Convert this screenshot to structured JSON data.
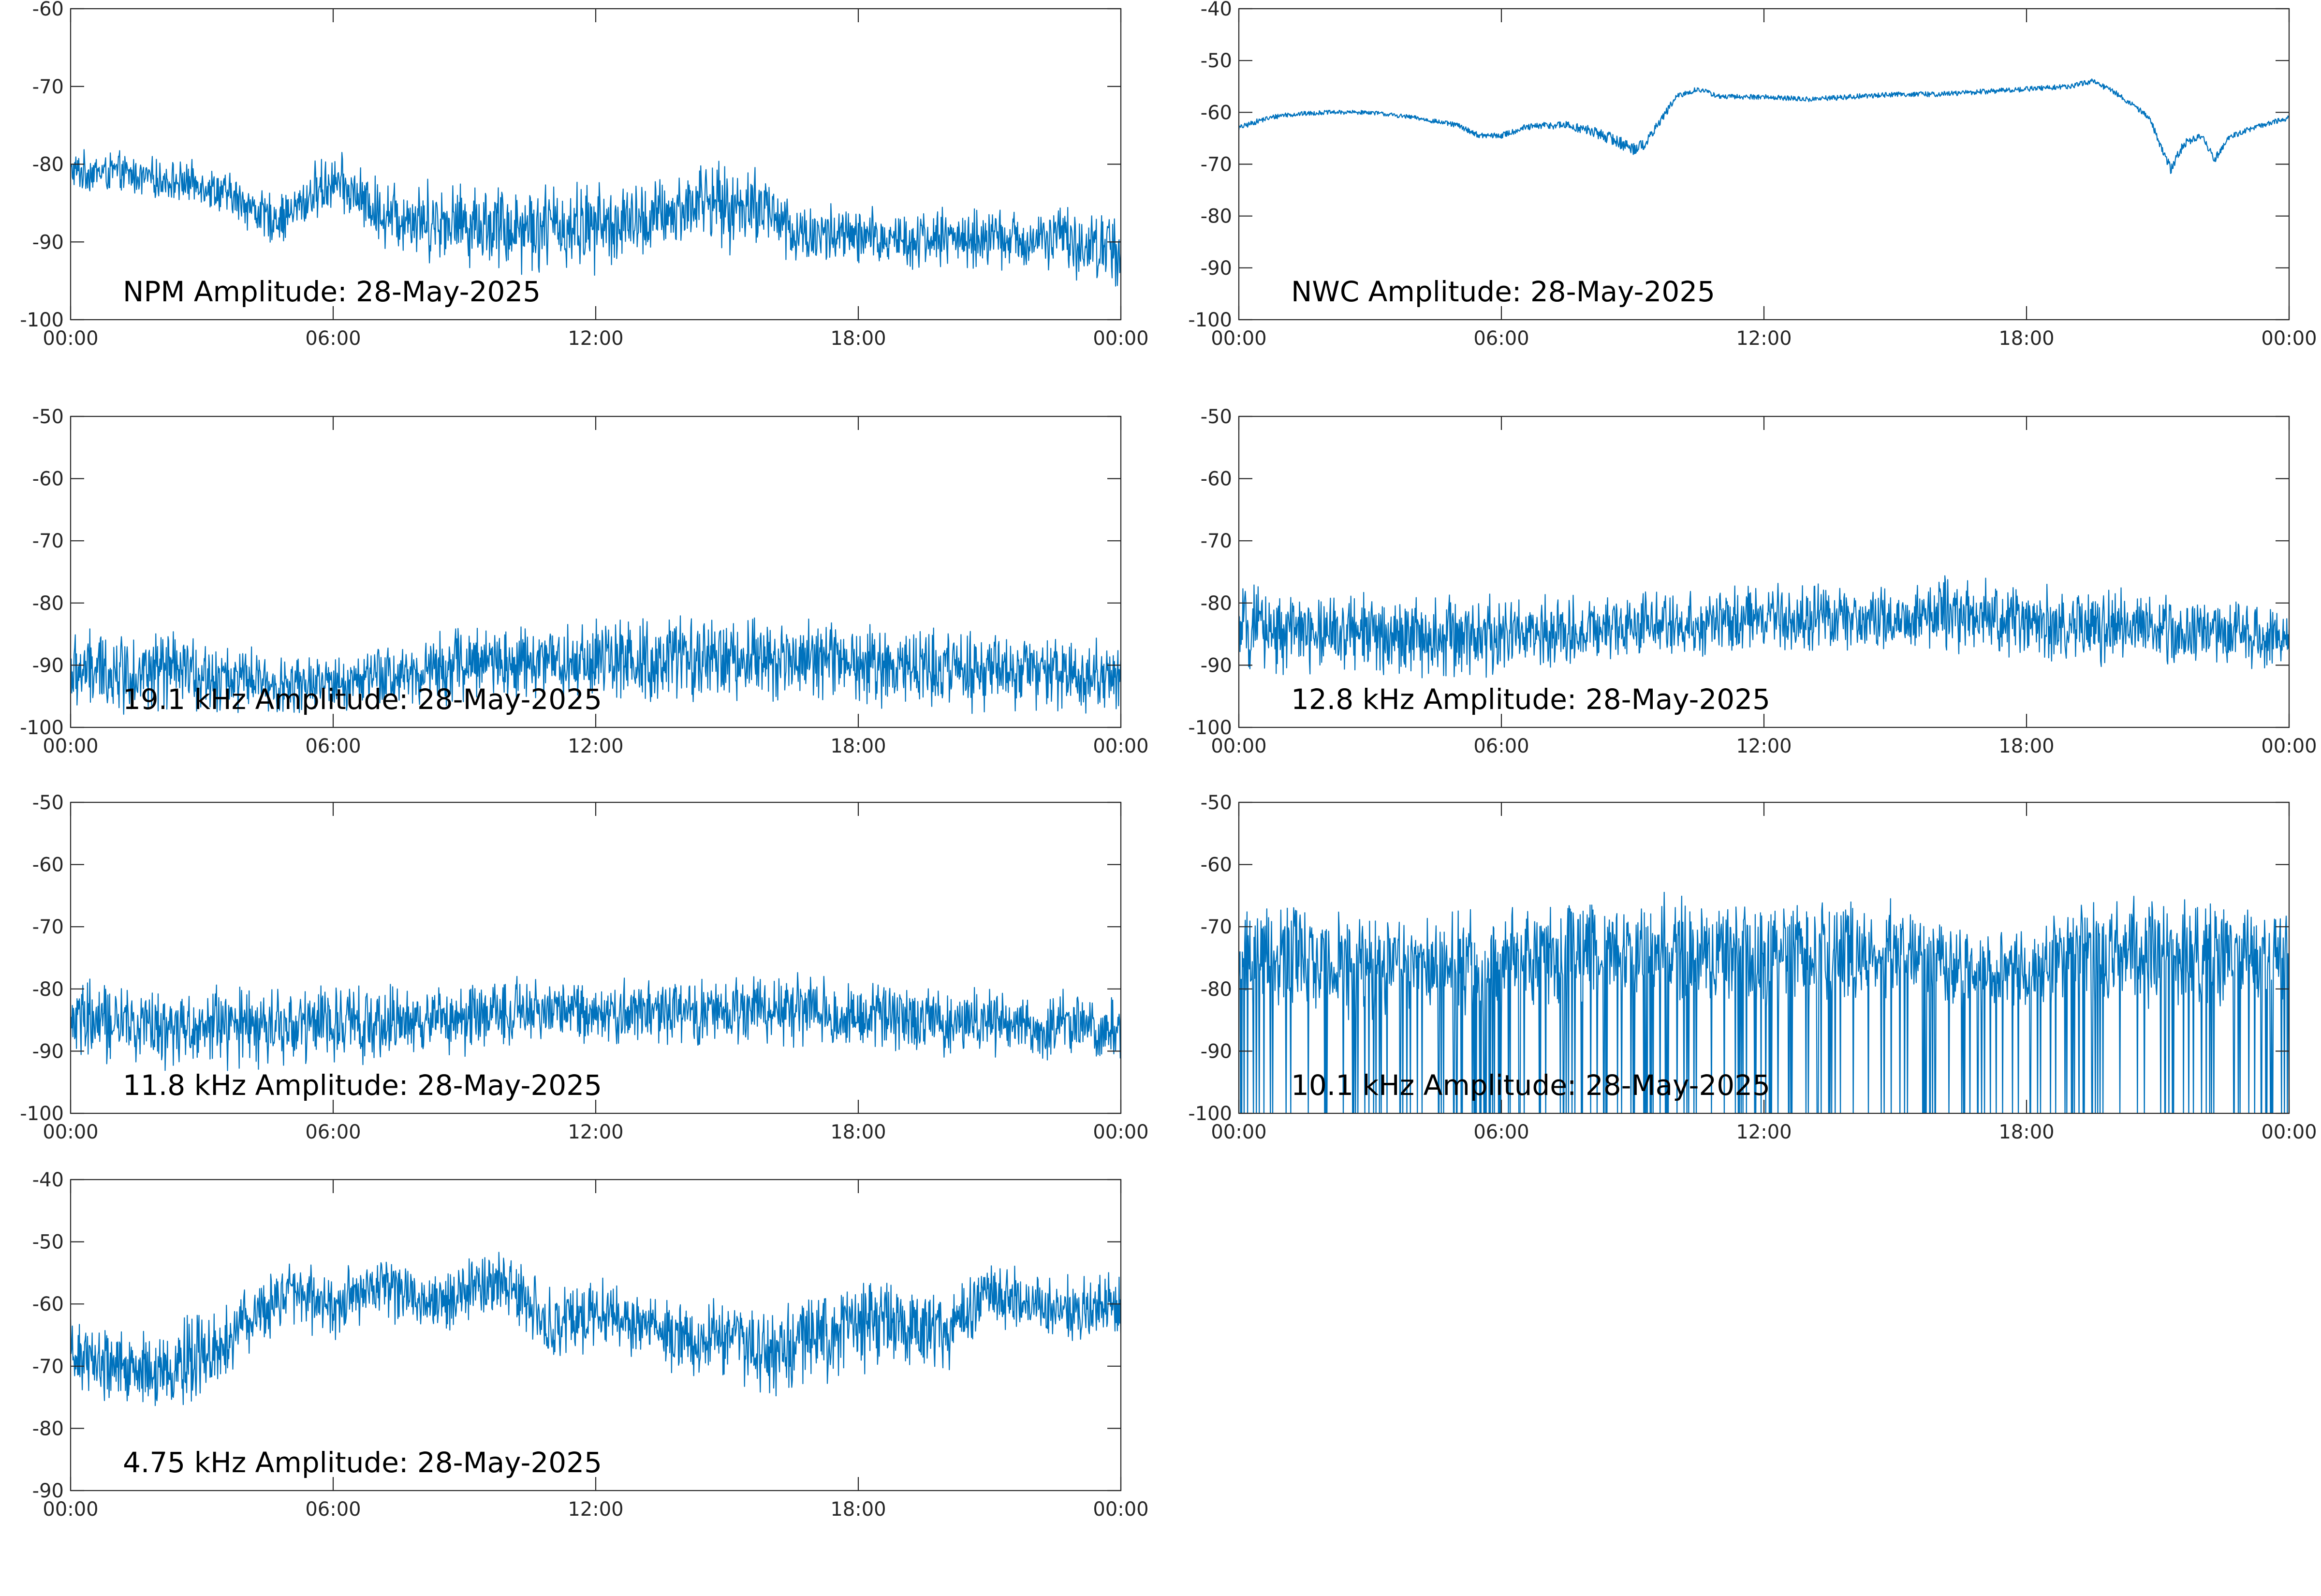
{
  "page": {
    "background": "#ffffff"
  },
  "chart_data": [
    {
      "type": "line",
      "title": "NPM Amplitude: 28-May-2025",
      "color": "#0072BD",
      "x_ticks": [
        "00:00",
        "06:00",
        "12:00",
        "18:00",
        "00:00"
      ],
      "ylim": [
        -100,
        -60
      ],
      "y_ticks": [
        -60,
        -70,
        -80,
        -90,
        -100
      ],
      "series": [
        {
          "x_hours": [
            0,
            1,
            2,
            3,
            4,
            4.5,
            5,
            5.5,
            6,
            6.5,
            7,
            8,
            9,
            10,
            11,
            12,
            13,
            14,
            14.5,
            15,
            15.5,
            16,
            16.5,
            17,
            18,
            19,
            20,
            21,
            22,
            22.8,
            23,
            24
          ],
          "center": [
            -81,
            -81,
            -82,
            -82.5,
            -85,
            -87,
            -86.5,
            -84,
            -82,
            -84,
            -86,
            -87,
            -87.5,
            -88,
            -88,
            -88,
            -87.5,
            -86,
            -84,
            -86,
            -85,
            -86,
            -89,
            -89,
            -89.5,
            -89.5,
            -89.5,
            -89.5,
            -90,
            -89,
            -90.5,
            -91
          ],
          "half_width": [
            2,
            2,
            2,
            2,
            2.5,
            2.5,
            2.5,
            3,
            3,
            3,
            3.5,
            4,
            4,
            4.5,
            4.5,
            4.5,
            4,
            4,
            4,
            4,
            4,
            4,
            3.5,
            3.5,
            3,
            3,
            3,
            3,
            3,
            3,
            3.5,
            4
          ]
        }
      ]
    },
    {
      "type": "line",
      "title": "NWC Amplitude: 28-May-2025",
      "color": "#0072BD",
      "x_ticks": [
        "00:00",
        "06:00",
        "12:00",
        "18:00",
        "00:00"
      ],
      "ylim": [
        -100,
        -40
      ],
      "y_ticks": [
        -40,
        -50,
        -60,
        -70,
        -80,
        -90,
        -100
      ],
      "series": [
        {
          "x_hours": [
            0,
            0.5,
            1,
            2,
            3,
            4,
            5,
            5.5,
            6,
            6.5,
            7,
            7.5,
            8,
            8.5,
            9,
            9.3,
            9.6,
            10,
            10.5,
            11,
            12,
            13,
            14,
            15,
            16,
            17,
            18,
            19,
            19.5,
            20,
            20.5,
            20.8,
            21,
            21.3,
            21.6,
            22,
            22.3,
            22.6,
            23,
            24
          ],
          "center": [
            -63,
            -61.5,
            -60.5,
            -60,
            -60,
            -61,
            -62.5,
            -64.5,
            -64.5,
            -63,
            -62.5,
            -62.5,
            -63.5,
            -65,
            -67,
            -66,
            -62,
            -57,
            -55.5,
            -57,
            -57,
            -57.5,
            -57,
            -56.5,
            -56.5,
            -56,
            -55.5,
            -55,
            -54,
            -56,
            -59,
            -61,
            -65,
            -71,
            -66,
            -64.5,
            -69,
            -65,
            -63.5,
            -61
          ],
          "half_width": [
            0.5,
            0.5,
            0.5,
            0.4,
            0.4,
            0.4,
            0.5,
            0.5,
            0.6,
            0.6,
            0.7,
            0.8,
            1,
            1.2,
            1.3,
            1,
            0.8,
            0.6,
            0.5,
            0.5,
            0.5,
            0.5,
            0.5,
            0.5,
            0.5,
            0.5,
            0.5,
            0.5,
            0.5,
            0.5,
            0.5,
            0.6,
            0.8,
            1,
            0.8,
            0.6,
            0.8,
            0.6,
            0.5,
            0.5
          ]
        }
      ]
    },
    {
      "type": "line",
      "title": "19.1 kHz Amplitude: 28-May-2025",
      "color": "#0072BD",
      "x_ticks": [
        "00:00",
        "06:00",
        "12:00",
        "18:00",
        "00:00"
      ],
      "ylim": [
        -100,
        -50
      ],
      "y_ticks": [
        -50,
        -60,
        -70,
        -80,
        -90,
        -100
      ],
      "series": [
        {
          "x_hours": [
            0,
            1,
            2,
            3,
            4,
            5,
            6,
            7,
            8,
            9,
            10,
            11,
            12,
            13,
            14,
            15,
            16,
            17,
            18,
            19,
            20,
            21,
            22,
            23,
            24
          ],
          "center": [
            -91,
            -91,
            -91,
            -91.5,
            -92.5,
            -93.5,
            -93,
            -92,
            -91,
            -90,
            -89.5,
            -89.5,
            -89,
            -89.5,
            -89,
            -89,
            -89,
            -89,
            -89.5,
            -90,
            -90.5,
            -91,
            -91.5,
            -92,
            -92
          ],
          "half_width": [
            5,
            5,
            5,
            4.5,
            4,
            3.5,
            3.5,
            4,
            4.5,
            5,
            5,
            5,
            5,
            5,
            5,
            5,
            5,
            5,
            5,
            5,
            5,
            5,
            5,
            5,
            5
          ]
        }
      ]
    },
    {
      "type": "line",
      "title": "12.8 kHz Amplitude: 28-May-2025",
      "color": "#0072BD",
      "x_ticks": [
        "00:00",
        "06:00",
        "12:00",
        "18:00",
        "00:00"
      ],
      "ylim": [
        -100,
        -50
      ],
      "y_ticks": [
        -50,
        -60,
        -70,
        -80,
        -90,
        -100
      ],
      "series": [
        {
          "x_hours": [
            0,
            1,
            2,
            3,
            4,
            5,
            6,
            7,
            8,
            9,
            10,
            11,
            12,
            13,
            14,
            15,
            16,
            17,
            18,
            19,
            20,
            21,
            22,
            23,
            24
          ],
          "center": [
            -84,
            -84.5,
            -85,
            -85,
            -85,
            -85,
            -85.5,
            -85,
            -84.5,
            -84,
            -83.5,
            -83,
            -82.5,
            -82.5,
            -82.5,
            -82.5,
            -82,
            -82.5,
            -83,
            -83.5,
            -84,
            -84,
            -84.5,
            -85,
            -86
          ],
          "half_width": [
            5,
            5,
            5,
            5,
            5,
            5,
            5,
            4.5,
            4.5,
            4.5,
            4,
            4,
            4,
            4,
            4,
            4,
            4.5,
            4.5,
            4.5,
            4.5,
            4.5,
            4.5,
            4,
            4,
            4
          ]
        }
      ]
    },
    {
      "type": "line",
      "title": "11.8 kHz Amplitude: 28-May-2025",
      "color": "#0072BD",
      "x_ticks": [
        "00:00",
        "06:00",
        "12:00",
        "18:00",
        "00:00"
      ],
      "ylim": [
        -100,
        -50
      ],
      "y_ticks": [
        -50,
        -60,
        -70,
        -80,
        -90,
        -100
      ],
      "series": [
        {
          "x_hours": [
            0,
            1,
            2,
            3,
            4,
            5,
            6,
            7,
            8,
            9,
            10,
            11,
            12,
            13,
            14,
            15,
            16,
            17,
            18,
            19,
            20,
            21,
            22,
            23,
            24
          ],
          "center": [
            -85,
            -85.5,
            -86,
            -86,
            -86,
            -86,
            -85.5,
            -85.5,
            -85,
            -84.5,
            -84,
            -83.5,
            -83.5,
            -83.5,
            -83.5,
            -83.5,
            -83,
            -83.5,
            -84,
            -84.5,
            -85,
            -85.5,
            -86,
            -86,
            -86.5
          ],
          "half_width": [
            5,
            5,
            5,
            5,
            5,
            5,
            5,
            4.5,
            4.5,
            4.5,
            4.5,
            4,
            4,
            4,
            4,
            4,
            4.5,
            4.5,
            4.5,
            4.5,
            4.5,
            4,
            4,
            4,
            4
          ]
        }
      ]
    },
    {
      "type": "line",
      "title": "10.1 kHz Amplitude: 28-May-2025",
      "color": "#0072BD",
      "x_ticks": [
        "00:00",
        "06:00",
        "12:00",
        "18:00",
        "00:00"
      ],
      "ylim": [
        -100,
        -50
      ],
      "y_ticks": [
        -50,
        -60,
        -70,
        -80,
        -90,
        -100
      ],
      "series": [
        {
          "x_hours": [
            0,
            2,
            4,
            6,
            7,
            8,
            10,
            12,
            14,
            15,
            16,
            17,
            18,
            19,
            20,
            22,
            24
          ],
          "center": [
            -75,
            -75,
            -76,
            -76,
            -74,
            -74,
            -74,
            -74,
            -74,
            -74,
            -75,
            -77,
            -77,
            -74,
            -74,
            -74,
            -74
          ],
          "half_width": [
            7,
            7,
            7,
            7,
            7,
            7,
            7,
            7,
            7,
            7,
            6,
            5,
            5,
            7,
            7,
            7,
            7
          ]
        }
      ]
    },
    {
      "type": "line",
      "title": "4.75 kHz Amplitude: 28-May-2025",
      "color": "#0072BD",
      "x_ticks": [
        "00:00",
        "06:00",
        "12:00",
        "18:00",
        "00:00"
      ],
      "ylim": [
        -90,
        -40
      ],
      "y_ticks": [
        -40,
        -50,
        -60,
        -70,
        -80,
        -90
      ],
      "series": [
        {
          "x_hours": [
            0,
            1,
            2,
            3,
            4,
            5,
            6,
            7,
            8,
            9,
            10,
            11,
            12,
            13,
            14,
            15,
            16,
            17,
            18,
            19,
            20,
            21,
            22,
            23,
            24
          ],
          "center": [
            -68,
            -70,
            -71,
            -68,
            -63,
            -58,
            -61,
            -57,
            -59,
            -58,
            -57,
            -64,
            -61,
            -63,
            -66,
            -65,
            -68,
            -65,
            -64,
            -63,
            -65,
            -58,
            -60,
            -61,
            -60
          ],
          "half_width": [
            4,
            5,
            5,
            5,
            5,
            4,
            4,
            4,
            4,
            4,
            4,
            5,
            4,
            4,
            5,
            5,
            6,
            6,
            6,
            5,
            5,
            4,
            4,
            4,
            4
          ]
        }
      ]
    }
  ]
}
